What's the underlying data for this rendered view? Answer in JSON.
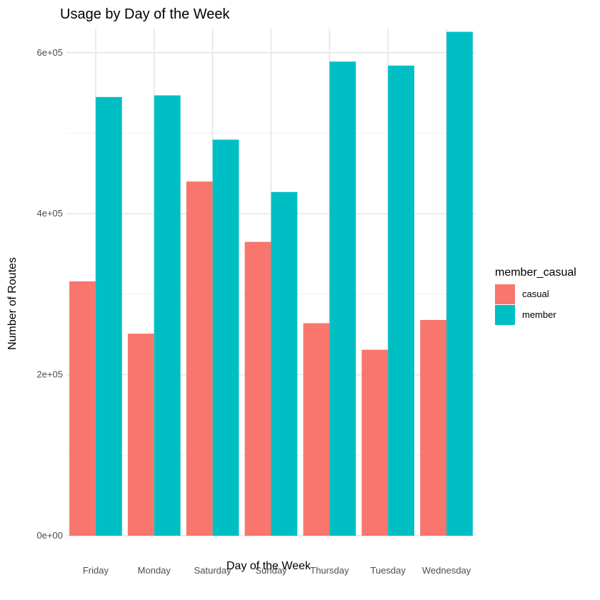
{
  "chart_data": {
    "type": "bar",
    "title": "Usage by Day of the Week",
    "xlabel": "Day of the Week",
    "ylabel": "Number of Routes",
    "categories": [
      "Friday",
      "Monday",
      "Saturday",
      "Sunday",
      "Thursday",
      "Tuesday",
      "Wednesday"
    ],
    "series": [
      {
        "name": "casual",
        "color": "#F8766D",
        "values": [
          316000,
          251000,
          440000,
          365000,
          264000,
          231000,
          268000
        ]
      },
      {
        "name": "member",
        "color": "#00BFC4",
        "values": [
          545000,
          547000,
          492000,
          427000,
          589000,
          584000,
          626000
        ]
      }
    ],
    "yticks": [
      0,
      200000,
      400000,
      600000
    ],
    "ytick_labels": [
      "0e+00",
      "2e+05",
      "4e+05",
      "6e+05"
    ],
    "ylim": [
      0,
      630000
    ],
    "legend": {
      "title": "member_casual",
      "position": "right"
    },
    "grid": true
  }
}
